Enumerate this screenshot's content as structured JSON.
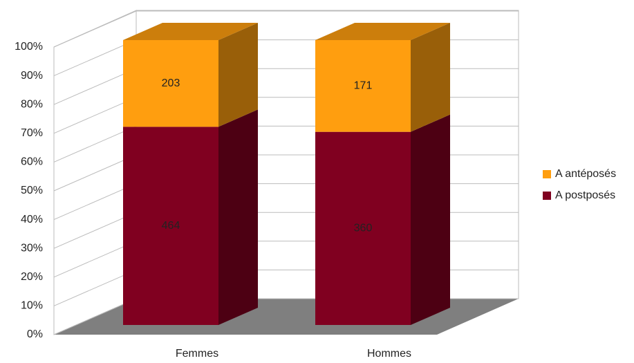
{
  "chart_data": {
    "type": "bar",
    "stacking": "percent",
    "categories": [
      "Femmes",
      "Hommes"
    ],
    "series": [
      {
        "name": "A postposés",
        "color": "#800020",
        "values": [
          464,
          360
        ]
      },
      {
        "name": "A antéposés",
        "color": "#ff9e0f",
        "values": [
          203,
          171
        ]
      }
    ],
    "ylim": [
      0,
      100
    ],
    "yticks": [
      {
        "value": 0,
        "label": "0%"
      },
      {
        "value": 10,
        "label": "10%"
      },
      {
        "value": 20,
        "label": "20%"
      },
      {
        "value": 30,
        "label": "30%"
      },
      {
        "value": 40,
        "label": "40%"
      },
      {
        "value": 50,
        "label": "50%"
      },
      {
        "value": 60,
        "label": "60%"
      },
      {
        "value": 70,
        "label": "70%"
      },
      {
        "value": 80,
        "label": "80%"
      },
      {
        "value": 90,
        "label": "90%"
      },
      {
        "value": 100,
        "label": "100%"
      }
    ],
    "grid": true,
    "legend": "right"
  }
}
